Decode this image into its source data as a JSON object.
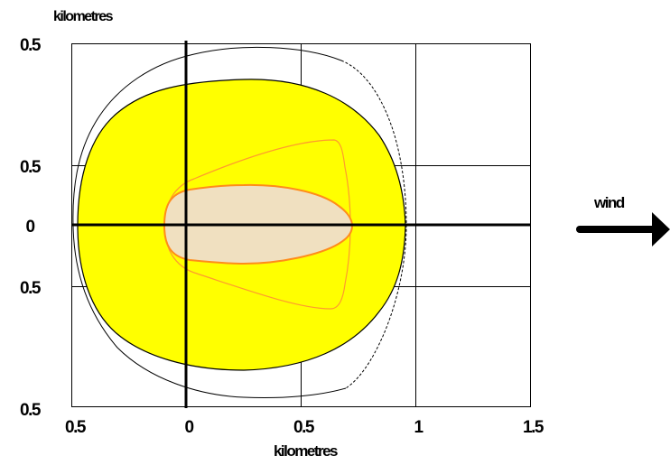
{
  "labels": {
    "y_axis_title": "kilometres",
    "x_axis_title": "kilometres",
    "wind_label": "wind"
  },
  "y_ticks": [
    "0.5",
    "0.5",
    "0",
    "0.5",
    "0.5"
  ],
  "x_ticks": [
    "0.5",
    "0",
    "0.5",
    "1",
    "1.5"
  ],
  "colors": {
    "outer_zone_fill": "#ffff00",
    "inner_zone_fill": "#f0e0c0",
    "inner_zone_stroke": "#ff8c1a",
    "middle_contour_stroke": "#ff9a2e",
    "outline_stroke": "#000000"
  }
}
